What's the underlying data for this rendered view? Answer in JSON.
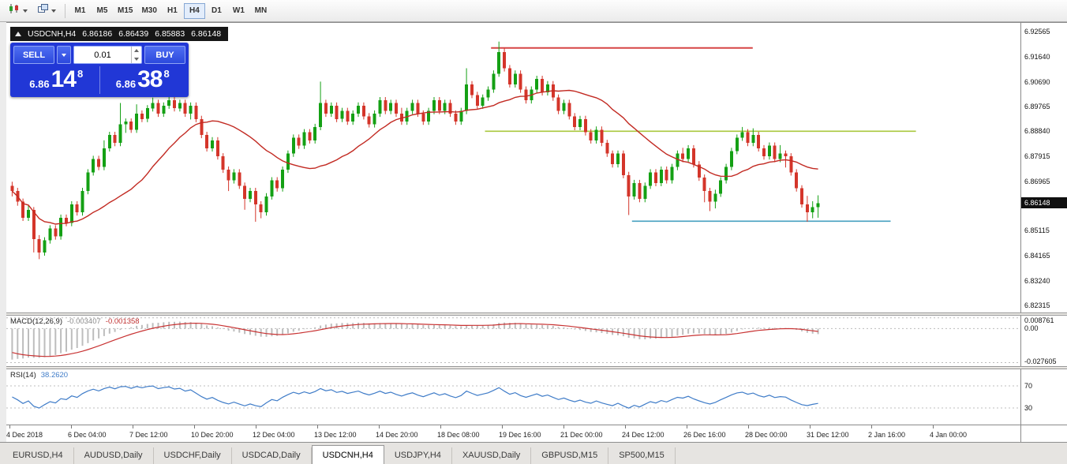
{
  "toolbar": {
    "periods": [
      {
        "label": "M1",
        "active": false
      },
      {
        "label": "M5",
        "active": false
      },
      {
        "label": "M15",
        "active": false
      },
      {
        "label": "M30",
        "active": false
      },
      {
        "label": "H1",
        "active": false
      },
      {
        "label": "H4",
        "active": true
      },
      {
        "label": "D1",
        "active": false
      },
      {
        "label": "W1",
        "active": false
      },
      {
        "label": "MN",
        "active": false
      }
    ]
  },
  "chart_header": {
    "symbol_period": "USDCNH,H4",
    "open": "6.86186",
    "high": "6.86439",
    "low": "6.85883",
    "close": "6.86148"
  },
  "trade_panel": {
    "sell_label": "SELL",
    "buy_label": "BUY",
    "volume": "0.01",
    "sell_price_small": "6.86",
    "sell_price_big": "14",
    "sell_price_sup": "8",
    "buy_price_small": "6.86",
    "buy_price_big": "38",
    "buy_price_sup": "8"
  },
  "macd_panel": {
    "name": "MACD(12,26,9)",
    "value_main": "-0.003407",
    "value_signal": "-0.001358",
    "axis_labels": [
      "0.008761",
      "0.00",
      "-0.027605"
    ]
  },
  "rsi_panel": {
    "name": "RSI(14)",
    "value": "38.2620",
    "axis_labels": [
      "70",
      "30"
    ]
  },
  "tabs": {
    "items": [
      {
        "label": "EURUSD,H4",
        "active": false
      },
      {
        "label": "AUDUSD,Daily",
        "active": false
      },
      {
        "label": "USDCHF,Daily",
        "active": false
      },
      {
        "label": "USDCAD,Daily",
        "active": false
      },
      {
        "label": "USDCNH,H4",
        "active": true
      },
      {
        "label": "USDJPY,H4",
        "active": false
      },
      {
        "label": "XAUUSD,Daily",
        "active": false
      },
      {
        "label": "GBPUSD,M15",
        "active": false
      },
      {
        "label": "SP500,M15",
        "active": false
      }
    ]
  },
  "chart_data": {
    "type": "candlestick",
    "symbol": "USDCNH",
    "timeframe": "H4",
    "current": {
      "open": 6.86186,
      "high": 6.86439,
      "low": 6.85883,
      "close": 6.86148
    },
    "current_price": 6.86148,
    "current_price_label": "6.86148",
    "price_min": 6.8205,
    "price_max": 6.929,
    "plot_span": 0.8,
    "y_axis_labels": [
      "6.92565",
      "6.91640",
      "6.90690",
      "6.89765",
      "6.88840",
      "6.87915",
      "6.86965",
      "6.86040",
      "6.85115",
      "6.84165",
      "6.83240",
      "6.82315"
    ],
    "x_axis_labels": [
      "4 Dec 2018",
      "6 Dec 04:00",
      "7 Dec 12:00",
      "10 Dec 20:00",
      "12 Dec 04:00",
      "13 Dec 12:00",
      "14 Dec 20:00",
      "18 Dec 08:00",
      "19 Dec 16:00",
      "21 Dec 00:00",
      "24 Dec 12:00",
      "26 Dec 16:00",
      "28 Dec 00:00",
      "31 Dec 12:00",
      "2 Jan 16:00",
      "4 Jan 00:00"
    ],
    "x_label_spacing_px": 78,
    "candles": [
      [
        6.868,
        6.8695,
        6.864,
        6.866
      ],
      [
        6.866,
        6.8672,
        6.8605,
        6.862
      ],
      [
        6.862,
        6.8632,
        6.8548,
        6.856
      ],
      [
        6.856,
        6.8605,
        6.8548,
        6.859
      ],
      [
        6.859,
        6.86,
        6.843,
        6.848
      ],
      [
        6.848,
        6.8495,
        6.8405,
        6.843
      ],
      [
        6.843,
        6.8487,
        6.8418,
        6.8475
      ],
      [
        6.8475,
        6.8532,
        6.8463,
        6.852
      ],
      [
        6.852,
        6.8532,
        6.8478,
        6.849
      ],
      [
        6.849,
        6.8572,
        6.8478,
        6.856
      ],
      [
        6.856,
        6.8572,
        6.8528,
        6.854
      ],
      [
        6.854,
        6.8622,
        6.8528,
        6.861
      ],
      [
        6.861,
        6.8622,
        6.8568,
        6.858
      ],
      [
        6.858,
        6.8672,
        6.8568,
        6.866
      ],
      [
        6.866,
        6.8742,
        6.8648,
        6.873
      ],
      [
        6.873,
        6.8792,
        6.8718,
        6.878
      ],
      [
        6.878,
        6.8792,
        6.8738,
        6.875
      ],
      [
        6.875,
        6.885,
        6.8738,
        6.882
      ],
      [
        6.882,
        6.8882,
        6.8808,
        6.887
      ],
      [
        6.887,
        6.8882,
        6.8828,
        6.884
      ],
      [
        6.884,
        6.899,
        6.8828,
        6.891
      ],
      [
        6.891,
        6.8932,
        6.8878,
        6.892
      ],
      [
        6.892,
        6.8932,
        6.8878,
        6.889
      ],
      [
        6.889,
        6.8985,
        6.8878,
        6.895
      ],
      [
        6.895,
        6.8962,
        6.8918,
        6.893
      ],
      [
        6.893,
        6.8982,
        6.8918,
        6.897
      ],
      [
        6.897,
        6.901,
        6.8958,
        6.899
      ],
      [
        6.899,
        6.9002,
        6.8938,
        6.895
      ],
      [
        6.895,
        6.8992,
        6.8938,
        6.898
      ],
      [
        6.898,
        6.903,
        6.8968,
        6.9
      ],
      [
        6.9,
        6.9012,
        6.8958,
        6.897
      ],
      [
        6.897,
        6.9002,
        6.8958,
        6.899
      ],
      [
        6.899,
        6.9002,
        6.8938,
        6.895
      ],
      [
        6.895,
        6.8992,
        6.8928,
        6.898
      ],
      [
        6.898,
        6.8992,
        6.8918,
        6.893
      ],
      [
        6.893,
        6.8942,
        6.8858,
        6.887
      ],
      [
        6.887,
        6.8882,
        6.8808,
        6.882
      ],
      [
        6.882,
        6.8862,
        6.8808,
        6.885
      ],
      [
        6.885,
        6.8862,
        6.8778,
        6.879
      ],
      [
        6.879,
        6.8802,
        6.8728,
        6.874
      ],
      [
        6.874,
        6.8752,
        6.866,
        6.87
      ],
      [
        6.87,
        6.8742,
        6.8688,
        6.873
      ],
      [
        6.873,
        6.8742,
        6.8668,
        6.868
      ],
      [
        6.868,
        6.8692,
        6.859,
        6.863
      ],
      [
        6.863,
        6.8672,
        6.8618,
        6.866
      ],
      [
        6.866,
        6.8672,
        6.8545,
        6.861
      ],
      [
        6.861,
        6.8622,
        6.8558,
        6.858
      ],
      [
        6.858,
        6.8652,
        6.8568,
        6.864
      ],
      [
        6.864,
        6.8712,
        6.8628,
        6.87
      ],
      [
        6.87,
        6.8712,
        6.8658,
        6.867
      ],
      [
        6.867,
        6.8752,
        6.8658,
        6.874
      ],
      [
        6.874,
        6.8812,
        6.8728,
        6.88
      ],
      [
        6.88,
        6.8872,
        6.8788,
        6.886
      ],
      [
        6.886,
        6.8872,
        6.8818,
        6.883
      ],
      [
        6.883,
        6.8892,
        6.8818,
        6.888
      ],
      [
        6.888,
        6.8892,
        6.8838,
        6.885
      ],
      [
        6.885,
        6.8912,
        6.8838,
        6.89
      ],
      [
        6.89,
        6.907,
        6.8888,
        6.899
      ],
      [
        6.899,
        6.9002,
        6.8938,
        6.895
      ],
      [
        6.895,
        6.8992,
        6.8938,
        6.898
      ],
      [
        6.898,
        6.8992,
        6.8918,
        6.893
      ],
      [
        6.893,
        6.8972,
        6.8918,
        6.896
      ],
      [
        6.896,
        6.8972,
        6.8908,
        6.892
      ],
      [
        6.892,
        6.8962,
        6.8908,
        6.895
      ],
      [
        6.895,
        6.8992,
        6.8938,
        6.898
      ],
      [
        6.898,
        6.8992,
        6.8928,
        6.894
      ],
      [
        6.894,
        6.8952,
        6.8898,
        6.891
      ],
      [
        6.891,
        6.8962,
        6.8898,
        6.895
      ],
      [
        6.895,
        6.9012,
        6.8938,
        6.9
      ],
      [
        6.9,
        6.9012,
        6.8948,
        6.896
      ],
      [
        6.896,
        6.9002,
        6.8948,
        6.899
      ],
      [
        6.899,
        6.9002,
        6.8938,
        6.895
      ],
      [
        6.895,
        6.8972,
        6.8908,
        6.892
      ],
      [
        6.892,
        6.8972,
        6.8908,
        6.896
      ],
      [
        6.896,
        6.9002,
        6.8948,
        6.899
      ],
      [
        6.899,
        6.9002,
        6.8938,
        6.895
      ],
      [
        6.895,
        6.8962,
        6.8908,
        6.892
      ],
      [
        6.892,
        6.8972,
        6.8908,
        6.896
      ],
      [
        6.896,
        6.9012,
        6.8948,
        6.9
      ],
      [
        6.9,
        6.9012,
        6.8948,
        6.896
      ],
      [
        6.896,
        6.9002,
        6.8948,
        6.899
      ],
      [
        6.899,
        6.9002,
        6.8938,
        6.895
      ],
      [
        6.895,
        6.8962,
        6.8908,
        6.892
      ],
      [
        6.892,
        6.8972,
        6.8908,
        6.896
      ],
      [
        6.896,
        6.912,
        6.8948,
        6.906
      ],
      [
        6.906,
        6.9072,
        6.9008,
        6.902
      ],
      [
        6.902,
        6.9032,
        6.8968,
        6.898
      ],
      [
        6.898,
        6.9022,
        6.8968,
        6.901
      ],
      [
        6.901,
        6.9052,
        6.8998,
        6.904
      ],
      [
        6.904,
        6.9112,
        6.9028,
        6.91
      ],
      [
        6.91,
        6.922,
        6.9088,
        6.918
      ],
      [
        6.918,
        6.9195,
        6.9108,
        6.912
      ],
      [
        6.912,
        6.9132,
        6.9048,
        6.906
      ],
      [
        6.906,
        6.9112,
        6.9048,
        6.91
      ],
      [
        6.91,
        6.9112,
        6.9028,
        6.904
      ],
      [
        6.904,
        6.9052,
        6.8988,
        6.9
      ],
      [
        6.9,
        6.9052,
        6.8988,
        6.904
      ],
      [
        6.904,
        6.9092,
        6.9028,
        6.908
      ],
      [
        6.908,
        6.9092,
        6.9018,
        6.903
      ],
      [
        6.903,
        6.9072,
        6.9018,
        6.906
      ],
      [
        6.906,
        6.9072,
        6.8998,
        6.901
      ],
      [
        6.901,
        6.9022,
        6.8948,
        6.896
      ],
      [
        6.896,
        6.9002,
        6.8948,
        6.899
      ],
      [
        6.899,
        6.9002,
        6.8928,
        6.894
      ],
      [
        6.894,
        6.8952,
        6.8888,
        6.89
      ],
      [
        6.89,
        6.8942,
        6.8888,
        6.893
      ],
      [
        6.893,
        6.8942,
        6.8868,
        6.888
      ],
      [
        6.888,
        6.8892,
        6.8838,
        6.885
      ],
      [
        6.885,
        6.8902,
        6.8838,
        6.889
      ],
      [
        6.889,
        6.8902,
        6.8828,
        6.884
      ],
      [
        6.884,
        6.8852,
        6.8788,
        6.88
      ],
      [
        6.88,
        6.8812,
        6.8748,
        6.876
      ],
      [
        6.876,
        6.8812,
        6.8748,
        6.88
      ],
      [
        6.88,
        6.8812,
        6.8708,
        6.872
      ],
      [
        6.872,
        6.8732,
        6.857,
        6.864
      ],
      [
        6.864,
        6.8702,
        6.8628,
        6.869
      ],
      [
        6.869,
        6.8702,
        6.8618,
        6.863
      ],
      [
        6.863,
        6.8692,
        6.8618,
        6.868
      ],
      [
        6.868,
        6.8742,
        6.8668,
        6.873
      ],
      [
        6.873,
        6.8742,
        6.8678,
        6.869
      ],
      [
        6.869,
        6.8752,
        6.8678,
        6.874
      ],
      [
        6.874,
        6.8752,
        6.8688,
        6.87
      ],
      [
        6.87,
        6.8762,
        6.8688,
        6.875
      ],
      [
        6.875,
        6.8812,
        6.8738,
        6.88
      ],
      [
        6.88,
        6.8822,
        6.8768,
        6.878
      ],
      [
        6.878,
        6.8832,
        6.8768,
        6.882
      ],
      [
        6.882,
        6.8832,
        6.8748,
        6.876
      ],
      [
        6.876,
        6.8772,
        6.8698,
        6.871
      ],
      [
        6.871,
        6.8722,
        6.8618,
        6.866
      ],
      [
        6.866,
        6.8672,
        6.8585,
        6.862
      ],
      [
        6.862,
        6.8665,
        6.8595,
        6.865
      ],
      [
        6.865,
        6.8712,
        6.8638,
        6.87
      ],
      [
        6.87,
        6.8762,
        6.8688,
        6.875
      ],
      [
        6.875,
        6.8822,
        6.8738,
        6.881
      ],
      [
        6.881,
        6.8872,
        6.8798,
        6.886
      ],
      [
        6.886,
        6.89,
        6.8848,
        6.888
      ],
      [
        6.888,
        6.8892,
        6.8828,
        6.884
      ],
      [
        6.884,
        6.8895,
        6.8828,
        6.887
      ],
      [
        6.887,
        6.8882,
        6.8808,
        6.882
      ],
      [
        6.882,
        6.8832,
        6.8778,
        6.879
      ],
      [
        6.879,
        6.8842,
        6.8778,
        6.883
      ],
      [
        6.883,
        6.8842,
        6.8768,
        6.878
      ],
      [
        6.878,
        6.8832,
        6.8768,
        6.88
      ],
      [
        6.88,
        6.8812,
        6.8748,
        6.879
      ],
      [
        6.879,
        6.8802,
        6.8718,
        6.873
      ],
      [
        6.873,
        6.8742,
        6.8658,
        6.867
      ],
      [
        6.867,
        6.8682,
        6.8598,
        6.861
      ],
      [
        6.861,
        6.8642,
        6.8545,
        6.858
      ],
      [
        6.858,
        6.8622,
        6.8558,
        6.86
      ],
      [
        6.86,
        6.8644,
        6.856,
        6.86148
      ]
    ],
    "ma": {
      "type": "sma",
      "period": 21,
      "color": "#c22a22"
    },
    "hlines": [
      {
        "price": 6.9196,
        "from": 0.478,
        "to": 0.736,
        "color": "#d64545",
        "width": 2
      },
      {
        "price": 6.8884,
        "from": 0.472,
        "to": 0.897,
        "color": "#aac83e",
        "width": 1.6
      },
      {
        "price": 6.8547,
        "from": 0.617,
        "to": 0.872,
        "color": "#46a0c0",
        "width": 1.6
      }
    ],
    "macd": {
      "fast": 12,
      "slow": 26,
      "signal": 9,
      "seed_ema_fast": 6.88,
      "seed_ema_slow": 6.906,
      "seed_signal": -0.018,
      "min": -0.0305,
      "max": 0.0105,
      "hist_color": "#bdbdbd",
      "line_color": "#c83232",
      "last_main": -0.003407,
      "last_signal": -0.001358
    },
    "rsi": {
      "period": 14,
      "min": 0,
      "max": 100,
      "levels": [
        70,
        30
      ],
      "seed_avg_gain": 0.0013,
      "seed_avg_loss": 0.0013,
      "color": "#3f7cc8",
      "last": 38.262
    },
    "colors": {
      "up": "#14a014",
      "down": "#d4352a"
    }
  }
}
